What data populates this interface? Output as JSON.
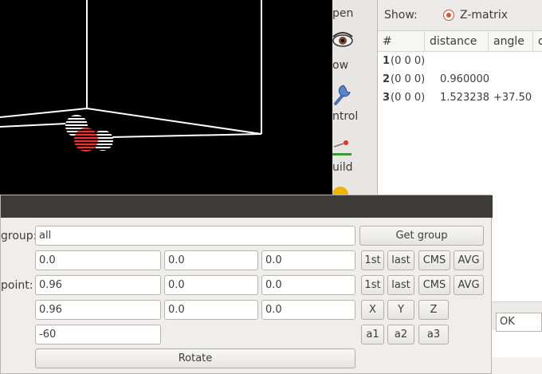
{
  "toolbar": {
    "items": [
      {
        "label": "pen",
        "icon": "open-icon"
      },
      {
        "label": "ow",
        "icon": "eye-icon"
      },
      {
        "label": "ntrol",
        "icon": "wrench-icon"
      },
      {
        "label": "uild",
        "icon": "build-icon"
      }
    ]
  },
  "zmatrix_window": {
    "show_label": "Show:",
    "radio_label": "Z-matrix",
    "columns": [
      "#",
      "distance",
      "angle",
      "d"
    ],
    "rows": [
      {
        "num": "1",
        "group": "(0 0 0)",
        "distance": "",
        "angle": ""
      },
      {
        "num": "2",
        "group": "(0 0 0)",
        "distance": "0.960000",
        "angle": ""
      },
      {
        "num": "3",
        "group": "(0 0 0)",
        "distance": "1.523238",
        "angle": "+37.50"
      }
    ]
  },
  "dialog": {
    "group_label": "group:",
    "group_value": "all",
    "get_group_button": "Get group",
    "row1": {
      "x": "0.0",
      "y": "0.0",
      "z": "0.0"
    },
    "point_label": "point:",
    "row2": {
      "x": "0.96",
      "y": "0.0",
      "z": "0.0"
    },
    "row3": {
      "x": "0.96",
      "y": "0.0",
      "z": "0.0"
    },
    "angle_value": "-60",
    "btn_1st": "1st",
    "btn_last": "last",
    "btn_cms": "CMS",
    "btn_avg": "AVG",
    "btn_x": "X",
    "btn_y": "Y",
    "btn_z": "Z",
    "btn_a1": "a1",
    "btn_a2": "a2",
    "btn_a3": "a3",
    "rotate_button": "Rotate"
  },
  "ok_field": "OK",
  "colors": {
    "accent_radio": "#e3552f",
    "viewer_bg": "#000000",
    "titlebar": "#3c3b37"
  }
}
